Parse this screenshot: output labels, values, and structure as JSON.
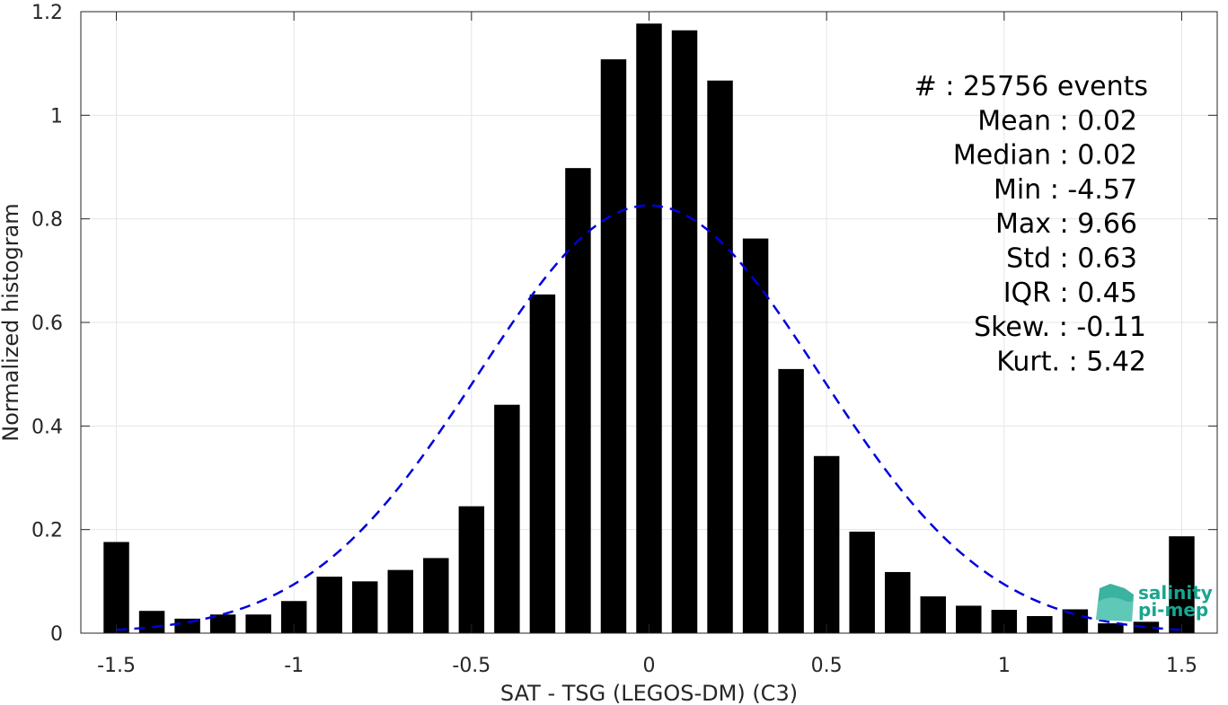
{
  "chart_data": {
    "type": "bar",
    "xlabel": "SAT - TSG (LEGOS-DM) (C3)",
    "ylabel": "Normalized histogram",
    "xlim": [
      -1.6,
      1.6
    ],
    "ylim": [
      0,
      1.2
    ],
    "xticks": [
      -1.5,
      -1,
      -0.5,
      0,
      0.5,
      1,
      1.5
    ],
    "xtick_labels": [
      "-1.5",
      "-1",
      "-0.5",
      "0",
      "0.5",
      "1",
      "1.5"
    ],
    "yticks": [
      0,
      0.2,
      0.4,
      0.6,
      0.8,
      1,
      1.2
    ],
    "ytick_labels": [
      "0",
      "0.2",
      "0.4",
      "0.6",
      "0.8",
      "1",
      "1.2"
    ],
    "grid": true,
    "bar_color": "#000000",
    "bin_width": 0.1,
    "x": [
      -1.5,
      -1.4,
      -1.3,
      -1.2,
      -1.1,
      -1.0,
      -0.9,
      -0.8,
      -0.7,
      -0.6,
      -0.5,
      -0.4,
      -0.3,
      -0.2,
      -0.1,
      0.0,
      0.1,
      0.2,
      0.3,
      0.4,
      0.5,
      0.6,
      0.7,
      0.8,
      0.9,
      1.0,
      1.1,
      1.2,
      1.3,
      1.4,
      1.5
    ],
    "values": [
      0.176,
      0.043,
      0.028,
      0.036,
      0.036,
      0.062,
      0.109,
      0.1,
      0.122,
      0.145,
      0.245,
      0.441,
      0.654,
      0.898,
      1.108,
      1.177,
      1.164,
      1.067,
      0.762,
      0.51,
      0.342,
      0.196,
      0.118,
      0.071,
      0.053,
      0.045,
      0.033,
      0.046,
      0.019,
      0.022,
      0.187
    ],
    "fit_curve": {
      "type": "gaussian",
      "mean": 0.0,
      "peak": 0.826,
      "sigma": 0.48,
      "x_range": [
        -1.5,
        1.5
      ],
      "color": "#0000dd",
      "style": "dashed"
    },
    "annotations": [
      "#  : 25756 events",
      "Mean : 0.02",
      "Median : 0.02",
      "Min : -4.57",
      "Max : 9.66",
      "Std : 0.63",
      "IQR : 0.45",
      "Skew. : -0.11",
      "Kurt. : 5.42"
    ],
    "logo": [
      "salinity",
      "pi-mep"
    ]
  }
}
